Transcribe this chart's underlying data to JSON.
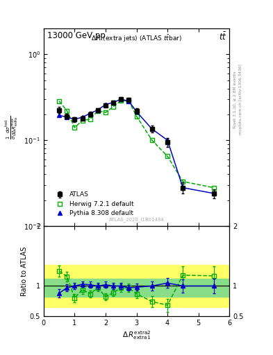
{
  "title_top": "13000 GeV pp",
  "title_right": "t$\\bar{t}$",
  "plot_title": "Δ R (extra jets) (ATLAS t̄t̄bar)",
  "watermark": "ATLAS_2020_I1801434",
  "right_label1": "Rivet 3.1.10, ≥ 2.8M events",
  "right_label2": "mcplots.cern.ch [arXiv:1306.3436]",
  "ylabel_ratio": "Ratio to ATLAS",
  "xlim": [
    0,
    6
  ],
  "ylim_main": [
    0.01,
    2.0
  ],
  "ylim_ratio": [
    0.5,
    2.0
  ],
  "atlas_x": [
    0.5,
    0.75,
    1.0,
    1.25,
    1.5,
    1.75,
    2.0,
    2.25,
    2.5,
    2.75,
    3.0,
    3.5,
    4.0,
    4.5,
    5.5
  ],
  "atlas_y": [
    0.225,
    0.19,
    0.175,
    0.18,
    0.2,
    0.225,
    0.255,
    0.275,
    0.3,
    0.295,
    0.22,
    0.135,
    0.095,
    0.028,
    0.024
  ],
  "atlas_yerr": [
    0.018,
    0.013,
    0.011,
    0.011,
    0.013,
    0.013,
    0.016,
    0.016,
    0.018,
    0.018,
    0.016,
    0.013,
    0.011,
    0.004,
    0.003
  ],
  "herwig_x": [
    0.5,
    0.75,
    1.0,
    1.25,
    1.5,
    1.75,
    2.0,
    2.25,
    2.5,
    2.75,
    3.0,
    3.5,
    4.0,
    4.5,
    5.5
  ],
  "herwig_y": [
    0.285,
    0.22,
    0.14,
    0.17,
    0.175,
    0.22,
    0.21,
    0.245,
    0.29,
    0.285,
    0.19,
    0.1,
    0.065,
    0.033,
    0.028
  ],
  "pythia_x": [
    0.5,
    0.75,
    1.0,
    1.25,
    1.5,
    1.75,
    2.0,
    2.25,
    2.5,
    2.75,
    3.0,
    3.5,
    4.0,
    4.5,
    5.5
  ],
  "pythia_y": [
    0.195,
    0.185,
    0.175,
    0.185,
    0.205,
    0.225,
    0.26,
    0.275,
    0.3,
    0.285,
    0.215,
    0.135,
    0.1,
    0.028,
    0.024
  ],
  "herwig_ratio": [
    1.25,
    1.16,
    0.8,
    0.94,
    0.87,
    0.97,
    0.82,
    0.89,
    0.97,
    0.97,
    0.87,
    0.74,
    0.68,
    1.18,
    1.17
  ],
  "pythia_ratio": [
    0.88,
    0.97,
    1.0,
    1.03,
    1.02,
    1.0,
    1.02,
    1.0,
    1.0,
    0.97,
    0.98,
    1.0,
    1.05,
    1.0,
    1.0
  ],
  "pythia_ratio_yerr": [
    0.07,
    0.06,
    0.05,
    0.05,
    0.05,
    0.05,
    0.05,
    0.05,
    0.05,
    0.05,
    0.06,
    0.07,
    0.08,
    0.11,
    0.12
  ],
  "herwig_ratio_yerr": [
    0.09,
    0.08,
    0.07,
    0.07,
    0.06,
    0.06,
    0.06,
    0.06,
    0.07,
    0.07,
    0.07,
    0.09,
    0.11,
    0.15,
    0.16
  ],
  "band_yellow_low": 0.65,
  "band_yellow_high": 1.35,
  "band_green_low": 0.82,
  "band_green_high": 1.12,
  "color_atlas": "#000000",
  "color_herwig": "#00aa00",
  "color_pythia": "#0000cc",
  "color_band_yellow": "#ffff66",
  "color_band_green": "#88dd88"
}
